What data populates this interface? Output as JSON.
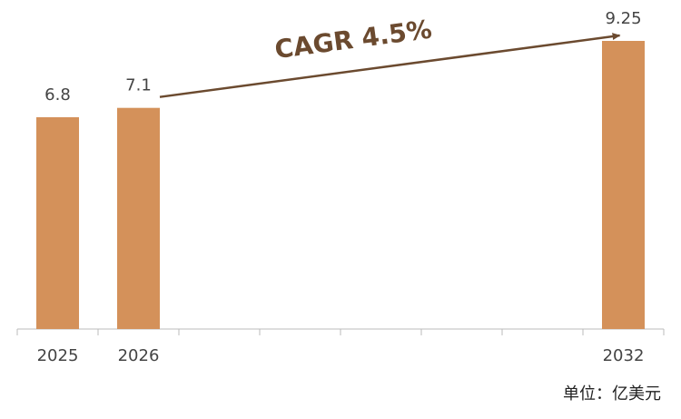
{
  "chart_data": {
    "type": "bar",
    "categories": [
      "2025",
      "2026",
      null,
      null,
      null,
      null,
      null,
      "2032"
    ],
    "values": [
      6.8,
      7.1,
      null,
      null,
      null,
      null,
      null,
      9.25
    ],
    "color": "#d4915a",
    "ylim": [
      0,
      10
    ],
    "annotation": "CAGR 4.5%",
    "unit_label": "单位：亿美元"
  }
}
